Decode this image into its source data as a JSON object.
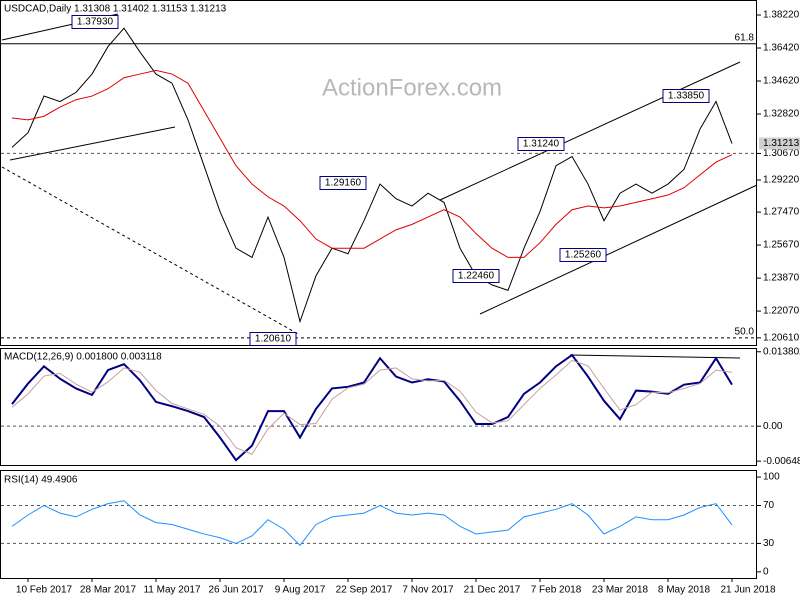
{
  "chart_data": [
    {
      "type": "line",
      "title": "USDCAD,Daily  1.31308 1.31402 1.31153 1.31213",
      "watermark": "ActionForex.com",
      "categories": [
        null,
        "10 Feb 2017",
        null,
        null,
        null,
        "28 Mar 2017",
        null,
        null,
        null,
        "11 May 2017",
        null,
        null,
        null,
        "26 Jun 2017",
        null,
        null,
        null,
        "9 Aug 2017",
        null,
        null,
        null,
        "22 Sep 2017",
        null,
        null,
        null,
        "7 Nov 2017",
        null,
        null,
        null,
        "21 Dec 2017",
        null,
        null,
        null,
        "7 Feb 2018",
        null,
        null,
        null,
        "23 Mar 2018",
        null,
        null,
        null,
        "8 May 2018",
        null,
        null,
        null,
        "21 Jun 2018"
      ],
      "series": [
        {
          "color": "#000000",
          "values": [
            1.31,
            1.318,
            1.338,
            1.335,
            1.34,
            1.35,
            1.365,
            1.375,
            1.362,
            1.35,
            1.345,
            1.325,
            1.3,
            1.275,
            1.255,
            1.25,
            1.272,
            1.25,
            1.215,
            1.24,
            1.255,
            1.252,
            1.27,
            1.29,
            1.282,
            1.278,
            1.285,
            1.28,
            1.255,
            1.24,
            1.235,
            1.232,
            1.255,
            1.275,
            1.3,
            1.305,
            1.29,
            1.27,
            1.285,
            1.29,
            1.285,
            1.29,
            1.298,
            1.32,
            1.335,
            1.3121
          ]
        },
        {
          "color": "#e00000",
          "values": [
            1.326,
            1.325,
            1.327,
            1.332,
            1.336,
            1.338,
            1.342,
            1.348,
            1.35,
            1.352,
            1.35,
            1.345,
            1.33,
            1.315,
            1.3,
            1.29,
            1.283,
            1.278,
            1.27,
            1.26,
            1.255,
            1.255,
            1.255,
            1.26,
            1.265,
            1.268,
            1.272,
            1.276,
            1.272,
            1.263,
            1.255,
            1.25,
            1.25,
            1.258,
            1.268,
            1.276,
            1.278,
            1.277,
            1.278,
            1.28,
            1.282,
            1.284,
            1.288,
            1.295,
            1.302,
            1.306
          ]
        }
      ],
      "ylim": [
        1.2022,
        1.3904
      ],
      "yticks": [
        {
          "value": 1.3822,
          "label": "1.38220"
        },
        {
          "value": 1.3642,
          "label": "1.36420"
        },
        {
          "value": 1.3462,
          "label": "1.34620"
        },
        {
          "value": 1.3282,
          "label": "1.32820"
        },
        {
          "value": 1.3067,
          "label": "1.30670"
        },
        {
          "value": 1.2922,
          "label": "1.29220"
        },
        {
          "value": 1.2747,
          "label": "1.27470"
        },
        {
          "value": 1.2567,
          "label": "1.25670"
        },
        {
          "value": 1.2387,
          "label": "1.23870"
        },
        {
          "value": 1.2207,
          "label": "1.22070"
        },
        {
          "value": 1.2061,
          "label": "1.20610"
        }
      ],
      "last": {
        "value": 1.31213,
        "label": "1.31213"
      },
      "level_lines": [
        1.3067
      ],
      "fib_levels": [
        {
          "value": 1.3665,
          "label": "61.8"
        },
        {
          "value": 1.2061,
          "label": "50.0"
        }
      ],
      "annotations": [
        "1.37930",
        "1.29160",
        "1.20610",
        "1.31240",
        "1.22460",
        "1.25260",
        "1.33850"
      ]
    },
    {
      "type": "line",
      "title": "MACD(12,26,9) 0.001800 0.003118",
      "series": [
        {
          "color": "#000080",
          "values": [
            0.0041,
            0.0079,
            0.0111,
            0.0088,
            0.007,
            0.0058,
            0.0104,
            0.0115,
            0.0085,
            0.0045,
            0.0037,
            0.0028,
            0.0017,
            -0.0021,
            -0.0063,
            -0.0036,
            0.0028,
            0.0028,
            -0.0021,
            0.0032,
            0.007,
            0.0073,
            0.0081,
            0.0126,
            0.0092,
            0.0081,
            0.0087,
            0.0083,
            0.0047,
            0.0004,
            0.0004,
            0.0017,
            0.006,
            0.0081,
            0.0111,
            0.0132,
            0.0092,
            0.0047,
            0.0013,
            0.0066,
            0.0064,
            0.006,
            0.0077,
            0.0081,
            0.0126,
            0.0077
          ]
        },
        {
          "color": "#c8a0a0",
          "values": [
            0.0035,
            0.006,
            0.0093,
            0.0098,
            0.0078,
            0.0063,
            0.0082,
            0.0108,
            0.01,
            0.0066,
            0.0042,
            0.0032,
            0.0022,
            0.0,
            -0.004,
            -0.0052,
            -0.0005,
            0.0024,
            0.0003,
            0.0005,
            0.005,
            0.0071,
            0.0078,
            0.0104,
            0.0108,
            0.0088,
            0.0084,
            0.0085,
            0.0065,
            0.0026,
            0.0006,
            0.001,
            0.004,
            0.007,
            0.0095,
            0.0122,
            0.0112,
            0.007,
            0.003,
            0.004,
            0.0063,
            0.0062,
            0.007,
            0.0079,
            0.0104,
            0.01
          ]
        }
      ],
      "ylim": [
        -0.0072,
        0.0145
      ],
      "yticks": [
        0.013802,
        {
          "value": 0,
          "label": "0.00"
        },
        -0.006486
      ],
      "level_lines": [
        0
      ]
    },
    {
      "type": "line",
      "title": "RSI(14) 49.4906",
      "series": [
        {
          "color": "#1e90ff",
          "values": [
            48,
            60,
            70,
            62,
            58,
            66,
            72,
            75,
            60,
            52,
            50,
            45,
            40,
            36,
            30,
            38,
            55,
            45,
            28,
            50,
            58,
            60,
            62,
            70,
            62,
            60,
            62,
            60,
            48,
            40,
            42,
            44,
            58,
            62,
            66,
            72,
            60,
            40,
            48,
            58,
            55,
            55,
            60,
            68,
            72,
            49.49
          ]
        }
      ],
      "ylim": [
        -6.5,
        107.5
      ],
      "yticks": [
        100,
        70,
        30,
        0
      ],
      "level_lines": [
        70,
        30
      ]
    }
  ]
}
